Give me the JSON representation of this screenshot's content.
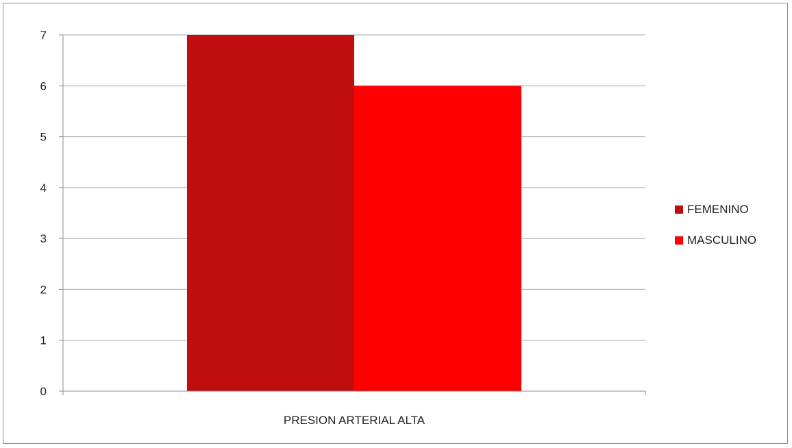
{
  "chart_data": {
    "type": "bar",
    "categories": [
      "PRESION ARTERIAL ALTA"
    ],
    "series": [
      {
        "name": "FEMENINO",
        "values": [
          7
        ],
        "color": "#c00d0d"
      },
      {
        "name": "MASCULINO",
        "values": [
          6
        ],
        "color": "#ff0000"
      }
    ],
    "ylim": [
      0,
      7
    ],
    "yticks": [
      0,
      1,
      2,
      3,
      4,
      5,
      6,
      7
    ],
    "grid": true,
    "legend_position": "right"
  }
}
